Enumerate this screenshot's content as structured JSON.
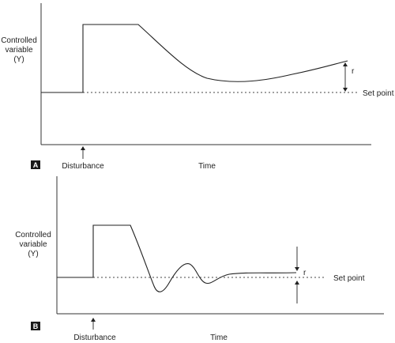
{
  "panel_a": {
    "badge": "A",
    "y_label_line1": "Controlled",
    "y_label_line2": "variable",
    "y_label_line3": "(Y)",
    "setpoint_label": "Set point",
    "offset_label": "r",
    "disturbance_label": "Disturbance",
    "x_label": "Time"
  },
  "panel_b": {
    "badge": "B",
    "y_label_line1": "Controlled",
    "y_label_line2": "variable",
    "y_label_line3": "(Y)",
    "setpoint_label": "Set point",
    "offset_label": "r",
    "disturbance_label": "Disturbance",
    "x_label": "Time"
  },
  "colors": {
    "ink": "#222222",
    "badge_fill": "#1a1a1a",
    "background": "#ffffff"
  }
}
